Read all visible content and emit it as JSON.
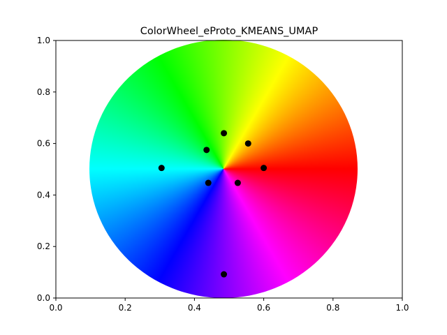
{
  "chart_data": {
    "type": "scatter",
    "title": "ColorWheel_eProto_KMEANS_UMAP",
    "xlabel": "",
    "ylabel": "",
    "xlim": [
      0,
      1
    ],
    "ylim": [
      0,
      1
    ],
    "xticks": [
      "0.0",
      "0.2",
      "0.4",
      "0.6",
      "0.8",
      "1.0"
    ],
    "yticks": [
      "0.0",
      "0.2",
      "0.4",
      "0.6",
      "0.8",
      "1.0"
    ],
    "grid": false,
    "background": "hue color wheel centered at (0.5, 0.5), red at 0°, hue increasing clockwise",
    "marker_color": "#000000",
    "points": [
      {
        "x": 0.485,
        "y": 0.64
      },
      {
        "x": 0.555,
        "y": 0.6
      },
      {
        "x": 0.435,
        "y": 0.575
      },
      {
        "x": 0.305,
        "y": 0.505
      },
      {
        "x": 0.6,
        "y": 0.505
      },
      {
        "x": 0.44,
        "y": 0.447
      },
      {
        "x": 0.525,
        "y": 0.447
      },
      {
        "x": 0.485,
        "y": 0.092
      }
    ]
  }
}
